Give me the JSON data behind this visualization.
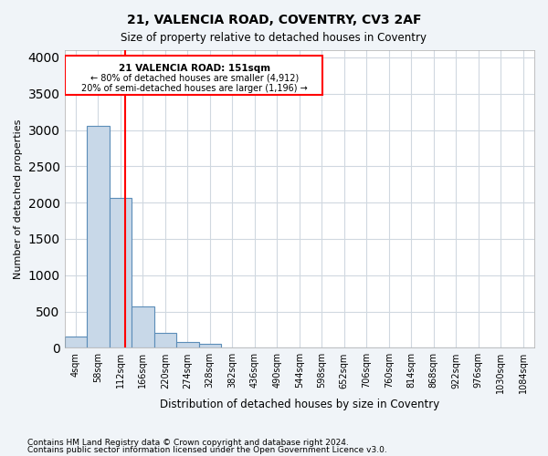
{
  "title1": "21, VALENCIA ROAD, COVENTRY, CV3 2AF",
  "title2": "Size of property relative to detached houses in Coventry",
  "xlabel": "Distribution of detached houses by size in Coventry",
  "ylabel": "Number of detached properties",
  "bin_labels": [
    "4sqm",
    "58sqm",
    "112sqm",
    "166sqm",
    "220sqm",
    "274sqm",
    "328sqm",
    "382sqm",
    "436sqm",
    "490sqm",
    "544sqm",
    "598sqm",
    "652sqm",
    "706sqm",
    "760sqm",
    "814sqm",
    "868sqm",
    "922sqm",
    "976sqm",
    "1030sqm",
    "1084sqm"
  ],
  "bar_heights": [
    150,
    3060,
    2060,
    570,
    210,
    80,
    55,
    0,
    0,
    0,
    0,
    0,
    0,
    0,
    0,
    0,
    0,
    0,
    0,
    0,
    0
  ],
  "bar_color": "#c8d8e8",
  "bar_edge_color": "#5b8db8",
  "ylim": [
    0,
    4100
  ],
  "yticks": [
    0,
    500,
    1000,
    1500,
    2000,
    2500,
    3000,
    3500,
    4000
  ],
  "property_size": 151,
  "property_line_x": 2.72,
  "annotation_title": "21 VALENCIA ROAD: 151sqm",
  "annotation_line1": "← 80% of detached houses are smaller (4,912)",
  "annotation_line2": "20% of semi-detached houses are larger (1,196) →",
  "footer1": "Contains HM Land Registry data © Crown copyright and database right 2024.",
  "footer2": "Contains public sector information licensed under the Open Government Licence v3.0.",
  "bg_color": "#f0f4f8",
  "plot_bg_color": "#ffffff",
  "grid_color": "#d0d8e0"
}
